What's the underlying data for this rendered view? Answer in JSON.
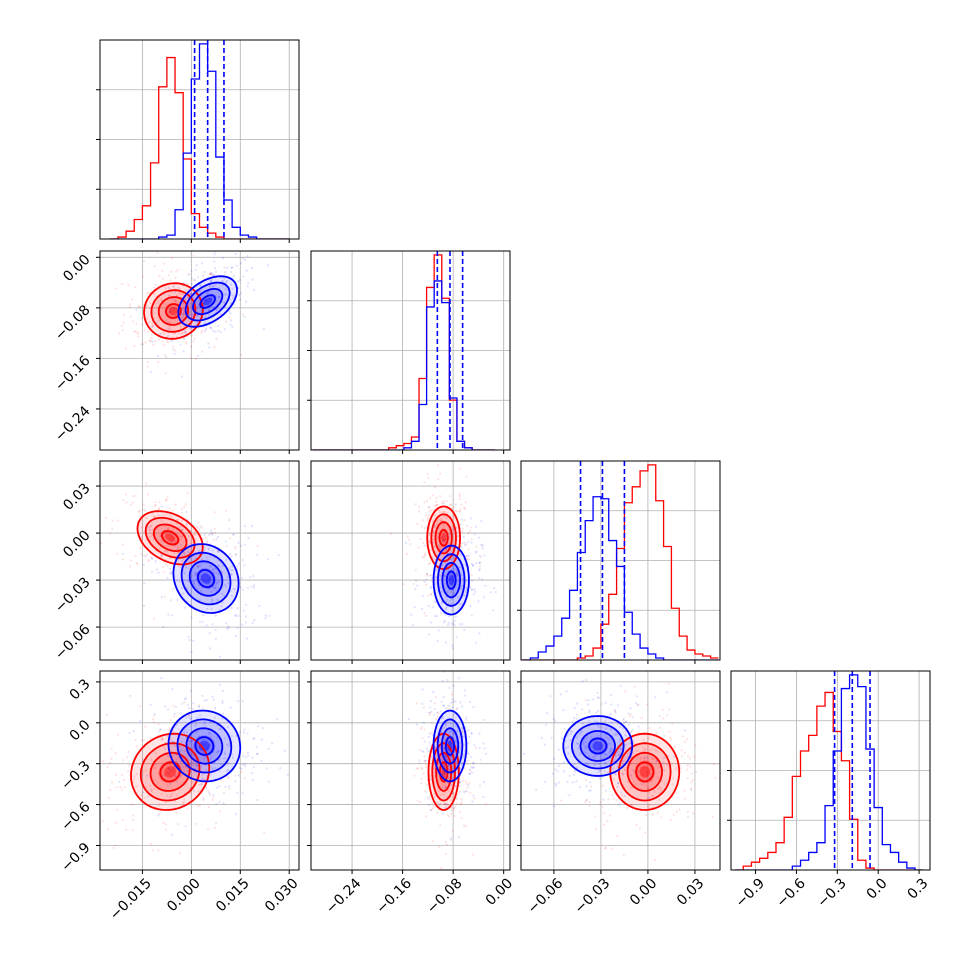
{
  "chart_data": {
    "type": "corner",
    "colors": {
      "series_a": "#ff0000",
      "series_b": "#0000ff",
      "grid": "#b0b0b0",
      "axis": "#000000"
    },
    "series": [
      {
        "color": "red"
      },
      {
        "color": "blue"
      }
    ],
    "parameters": [
      {
        "range": [
          -0.028,
          0.033
        ],
        "ticks": [
          -0.015,
          0.0,
          0.015,
          0.03
        ],
        "tick_labels": [
          "−0.015",
          "0.000",
          "0.015",
          "0.030"
        ]
      },
      {
        "range": [
          -0.305,
          0.01
        ],
        "ticks": [
          -0.24,
          -0.16,
          -0.08,
          0.0
        ],
        "tick_labels": [
          "−0.24",
          "−0.16",
          "−0.08",
          "0.00"
        ]
      },
      {
        "range": [
          -0.081,
          0.046
        ],
        "ticks": [
          -0.06,
          -0.03,
          0.0,
          0.03
        ],
        "tick_labels": [
          "−0.06",
          "−0.03",
          "0.00",
          "0.03"
        ]
      },
      {
        "range": [
          -1.08,
          0.38
        ],
        "ticks": [
          -0.9,
          -0.6,
          -0.3,
          0.0,
          0.3
        ],
        "tick_labels": [
          "−0.9",
          "−0.6",
          "−0.3",
          "0.0",
          "0.3"
        ]
      }
    ],
    "marginals": [
      {
        "bins": [
          -0.025,
          -0.0225,
          -0.02,
          -0.0175,
          -0.015,
          -0.0125,
          -0.01,
          -0.0075,
          -0.005,
          -0.0025,
          0.0,
          0.0025,
          0.005,
          0.0075,
          0.01,
          0.0125,
          0.015,
          0.0175,
          0.02,
          0.0225,
          0.025,
          0.0275,
          0.03
        ],
        "red": [
          0.0,
          0.01,
          0.04,
          0.1,
          0.17,
          0.39,
          0.78,
          0.93,
          0.75,
          0.41,
          0.13,
          0.06,
          0.03,
          0.01,
          0.0,
          0,
          0,
          0,
          0,
          0,
          0,
          0
        ],
        "blue": [
          0,
          0,
          0,
          0,
          0,
          0,
          0.01,
          0.02,
          0.15,
          0.44,
          0.82,
          1.0,
          0.86,
          0.42,
          0.2,
          0.06,
          0.02,
          0.01,
          0,
          0,
          0,
          0
        ],
        "quantiles": [
          0.001,
          0.005,
          0.01
        ]
      },
      {
        "bins": [
          -0.302,
          -0.29,
          -0.278,
          -0.266,
          -0.254,
          -0.242,
          -0.23,
          -0.218,
          -0.206,
          -0.194,
          -0.182,
          -0.17,
          -0.158,
          -0.146,
          -0.134,
          -0.122,
          -0.11,
          -0.098,
          -0.086,
          -0.074,
          -0.062,
          -0.05,
          -0.038,
          -0.026,
          -0.014,
          -0.002,
          0.01
        ],
        "red": [
          0,
          0,
          0,
          0,
          0,
          0,
          0,
          0,
          0.0,
          0.0,
          0.01,
          0.02,
          0.03,
          0.06,
          0.33,
          0.75,
          0.9,
          0.7,
          0.23,
          0.04,
          0.01,
          0.0,
          0,
          0
        ],
        "blue": [
          0,
          0,
          0,
          0,
          0,
          0,
          0,
          0,
          0,
          0,
          0,
          0.0,
          0.01,
          0.04,
          0.21,
          0.66,
          0.78,
          0.68,
          0.24,
          0.04,
          0.01,
          0.0,
          0,
          0
        ],
        "quantiles": [
          -0.105,
          -0.085,
          -0.065
        ]
      },
      {
        "bins": [
          -0.08,
          -0.075,
          -0.07,
          -0.065,
          -0.06,
          -0.055,
          -0.05,
          -0.045,
          -0.04,
          -0.035,
          -0.03,
          -0.025,
          -0.02,
          -0.015,
          -0.01,
          -0.005,
          0.0,
          0.005,
          0.01,
          0.015,
          0.02,
          0.025,
          0.03,
          0.035,
          0.04,
          0.045
        ],
        "red": [
          0.0,
          0.0,
          0.0,
          0.0,
          0.0,
          0.0,
          0.0,
          0.01,
          0.02,
          0.06,
          0.18,
          0.33,
          0.56,
          0.79,
          0.87,
          0.95,
          0.98,
          0.8,
          0.57,
          0.26,
          0.12,
          0.05,
          0.03,
          0.02,
          0.01
        ],
        "blue": [
          0.0,
          0.01,
          0.04,
          0.07,
          0.12,
          0.21,
          0.35,
          0.54,
          0.7,
          0.82,
          0.81,
          0.6,
          0.47,
          0.24,
          0.13,
          0.06,
          0.03,
          0.01,
          0.0,
          0.0,
          0.0,
          0.0,
          0.0,
          0.0,
          0.0
        ],
        "quantiles": [
          -0.043,
          -0.029,
          -0.015
        ]
      },
      {
        "bins": [
          -1.05,
          -0.99,
          -0.93,
          -0.87,
          -0.81,
          -0.75,
          -0.69,
          -0.63,
          -0.57,
          -0.51,
          -0.45,
          -0.39,
          -0.33,
          -0.27,
          -0.21,
          -0.15,
          -0.09,
          -0.03,
          0.03,
          0.09,
          0.15,
          0.21,
          0.27,
          0.33
        ],
        "red": [
          0.0,
          0.02,
          0.04,
          0.06,
          0.09,
          0.14,
          0.27,
          0.48,
          0.61,
          0.69,
          0.84,
          0.91,
          0.71,
          0.56,
          0.26,
          0.05,
          0.01,
          0.0,
          0,
          0,
          0,
          0,
          0
        ],
        "blue": [
          0,
          0,
          0,
          0,
          0,
          0,
          0.0,
          0.02,
          0.05,
          0.09,
          0.14,
          0.33,
          0.61,
          0.93,
          1.0,
          0.94,
          0.62,
          0.32,
          0.13,
          0.09,
          0.04,
          0.01,
          0.0
        ],
        "quantiles": [
          -0.32,
          -0.19,
          -0.06
        ]
      }
    ],
    "pairs": [
      {
        "row": 1,
        "col": 0,
        "red": {
          "mx": -0.0055,
          "my": -0.085,
          "sx": 0.0045,
          "sy": 0.022,
          "rho": 0.05
        },
        "blue": {
          "mx": 0.005,
          "my": -0.07,
          "sx": 0.0045,
          "sy": 0.02,
          "rho": 0.45
        }
      },
      {
        "row": 2,
        "col": 0,
        "red": {
          "mx": -0.0065,
          "my": -0.003,
          "sx": 0.005,
          "sy": 0.0085,
          "rho": -0.35
        },
        "blue": {
          "mx": 0.0045,
          "my": -0.029,
          "sx": 0.005,
          "sy": 0.011,
          "rho": -0.15
        }
      },
      {
        "row": 2,
        "col": 1,
        "red": {
          "mx": -0.095,
          "my": -0.003,
          "sx": 0.013,
          "sy": 0.01,
          "rho": 0.0
        },
        "blue": {
          "mx": -0.083,
          "my": -0.03,
          "sx": 0.014,
          "sy": 0.011,
          "rho": 0.0
        }
      },
      {
        "row": 3,
        "col": 0,
        "red": {
          "mx": -0.0065,
          "my": -0.36,
          "sx": 0.006,
          "sy": 0.14,
          "rho": 0.1
        },
        "blue": {
          "mx": 0.004,
          "my": -0.17,
          "sx": 0.0055,
          "sy": 0.13,
          "rho": -0.05
        }
      },
      {
        "row": 3,
        "col": 1,
        "red": {
          "mx": -0.095,
          "my": -0.36,
          "sx": 0.012,
          "sy": 0.14,
          "rho": 0.0
        },
        "blue": {
          "mx": -0.085,
          "my": -0.17,
          "sx": 0.013,
          "sy": 0.13,
          "rho": 0.0
        }
      },
      {
        "row": 3,
        "col": 2,
        "red": {
          "mx": -0.002,
          "my": -0.36,
          "sx": 0.011,
          "sy": 0.14,
          "rho": 0.0
        },
        "blue": {
          "mx": -0.032,
          "my": -0.17,
          "sx": 0.011,
          "sy": 0.11,
          "rho": 0.0
        }
      }
    ],
    "grid": true
  }
}
